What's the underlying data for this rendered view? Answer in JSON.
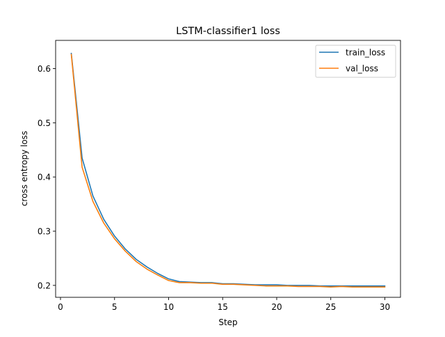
{
  "chart_data": {
    "type": "line",
    "title": "LSTM-classifier1 loss",
    "xlabel": "Step",
    "ylabel": "cross entropy loss",
    "xlim": [
      -0.45,
      31.45
    ],
    "ylim": [
      0.178,
      0.652
    ],
    "xticks": [
      0,
      5,
      10,
      15,
      20,
      25,
      30
    ],
    "yticks": [
      0.2,
      0.3,
      0.4,
      0.5,
      0.6
    ],
    "ytick_labels": [
      "0.2",
      "0.3",
      "0.4",
      "0.5",
      "0.6"
    ],
    "grid": false,
    "legend": "top-right",
    "x": [
      1,
      2,
      3,
      4,
      5,
      6,
      7,
      8,
      9,
      10,
      11,
      12,
      13,
      14,
      15,
      16,
      17,
      18,
      19,
      20,
      21,
      22,
      23,
      24,
      25,
      26,
      27,
      28,
      29,
      30
    ],
    "series": [
      {
        "name": "train_loss",
        "color": "#1f77b4",
        "values": [
          0.628,
          0.435,
          0.365,
          0.322,
          0.291,
          0.267,
          0.248,
          0.234,
          0.222,
          0.212,
          0.207,
          0.206,
          0.205,
          0.205,
          0.203,
          0.203,
          0.202,
          0.201,
          0.201,
          0.201,
          0.2,
          0.2,
          0.2,
          0.199,
          0.199,
          0.199,
          0.199,
          0.199,
          0.199,
          0.199
        ]
      },
      {
        "name": "val_loss",
        "color": "#ff7f0e",
        "values": [
          0.626,
          0.418,
          0.355,
          0.315,
          0.286,
          0.263,
          0.244,
          0.23,
          0.219,
          0.209,
          0.205,
          0.205,
          0.204,
          0.204,
          0.202,
          0.202,
          0.201,
          0.2,
          0.199,
          0.199,
          0.199,
          0.198,
          0.198,
          0.198,
          0.197,
          0.198,
          0.197,
          0.197,
          0.197,
          0.197
        ]
      }
    ]
  }
}
